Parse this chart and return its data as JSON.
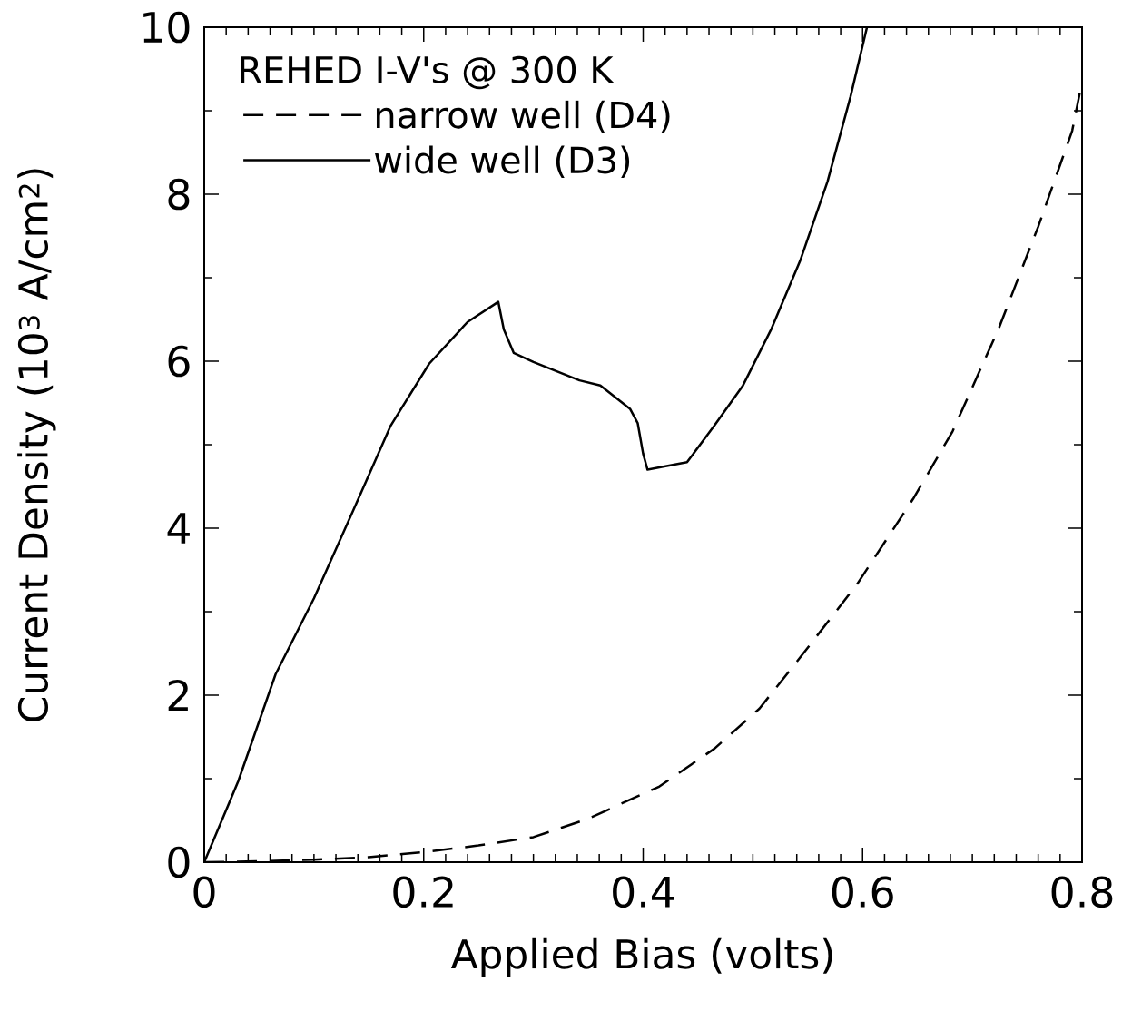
{
  "chart_data": {
    "type": "line",
    "xlabel": "Applied Bias (volts)",
    "ylabel": "Current Density (10$^{3}$ A/cm$^{2}$)",
    "legend_title": "REHED I-V's @ 300 K",
    "xlim": [
      0,
      0.8
    ],
    "ylim": [
      0,
      10
    ],
    "xticks": [
      0,
      0.2,
      0.4,
      0.6,
      0.8
    ],
    "yticks": [
      0,
      2,
      4,
      6,
      8,
      10
    ],
    "legend": "top left",
    "grid": false,
    "series": [
      {
        "name": "narrow well (D4)",
        "color": "#000000",
        "line_style": "dashed",
        "x": [
          0,
          0.05,
          0.1,
          0.15,
          0.2,
          0.25,
          0.3,
          0.35,
          0.4,
          0.414,
          0.465,
          0.506,
          0.543,
          0.595,
          0.646,
          0.682,
          0.724,
          0.76,
          0.791,
          0.8
        ],
        "values": [
          0,
          0.01,
          0.03,
          0.06,
          0.12,
          0.2,
          0.3,
          0.52,
          0.82,
          0.9,
          1.36,
          1.84,
          2.45,
          3.33,
          4.35,
          5.16,
          6.39,
          7.61,
          8.76,
          9.35
        ]
      },
      {
        "name": "wide well (D3)",
        "color": "#000000",
        "line_style": "solid",
        "x": [
          0,
          0.031,
          0.065,
          0.1,
          0.136,
          0.17,
          0.205,
          0.24,
          0.268,
          0.273,
          0.282,
          0.3,
          0.342,
          0.361,
          0.388,
          0.395,
          0.4,
          0.404,
          0.44,
          0.465,
          0.491,
          0.517,
          0.543,
          0.568,
          0.589,
          0.604
        ],
        "values": [
          0,
          0.97,
          2.25,
          3.16,
          4.22,
          5.23,
          5.97,
          6.47,
          6.71,
          6.38,
          6.1,
          5.99,
          5.77,
          5.71,
          5.43,
          5.26,
          4.89,
          4.7,
          4.79,
          5.23,
          5.71,
          6.39,
          7.2,
          8.15,
          9.17,
          10
        ]
      }
    ]
  }
}
